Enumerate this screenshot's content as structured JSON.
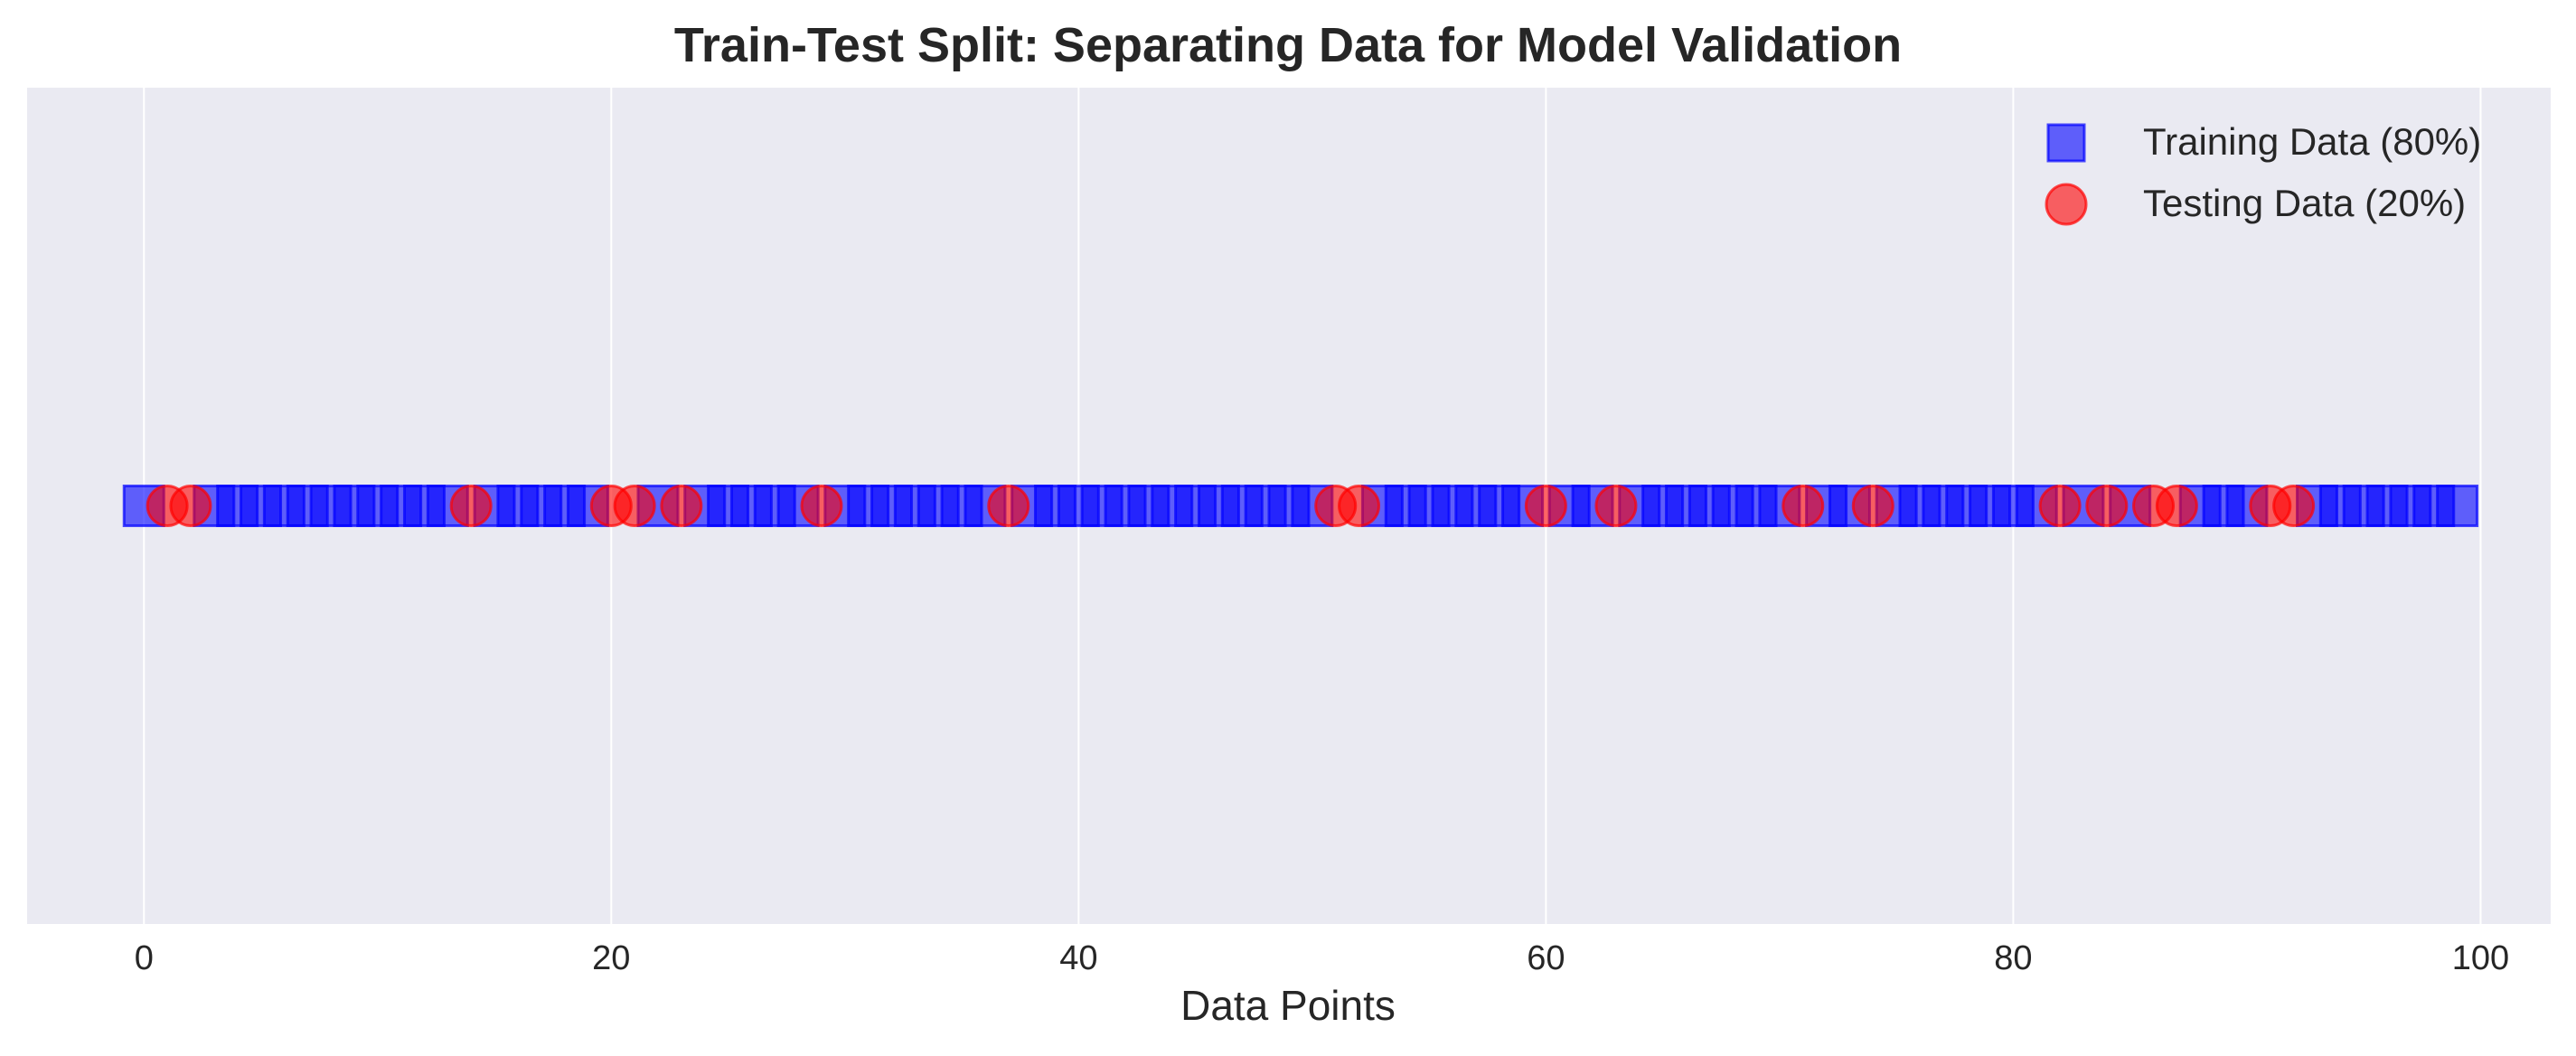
{
  "chart_data": {
    "type": "scatter",
    "title": "Train-Test Split: Separating Data for Model Validation",
    "xlabel": "Data Points",
    "ylabel": "",
    "xlim": [
      -5,
      103
    ],
    "ylim": [
      -1,
      1
    ],
    "xticks": [
      0,
      20,
      40,
      60,
      80,
      100
    ],
    "grid": true,
    "legend_position": "top-right",
    "series": [
      {
        "name": "Training Data (80%)",
        "marker": "square",
        "color": "#0000ff",
        "x": [
          0,
          3,
          4,
          5,
          6,
          7,
          8,
          9,
          10,
          11,
          12,
          13,
          15,
          16,
          17,
          18,
          19,
          22,
          24,
          25,
          26,
          27,
          28,
          30,
          31,
          32,
          33,
          34,
          35,
          36,
          38,
          39,
          40,
          41,
          42,
          43,
          44,
          45,
          46,
          47,
          48,
          49,
          50,
          53,
          54,
          55,
          56,
          57,
          58,
          59,
          61,
          62,
          64,
          65,
          66,
          67,
          68,
          69,
          70,
          72,
          73,
          75,
          76,
          77,
          78,
          79,
          80,
          81,
          83,
          85,
          88,
          89,
          90,
          93,
          94,
          95,
          96,
          97,
          98,
          99
        ],
        "y": [
          0,
          0,
          0,
          0,
          0,
          0,
          0,
          0,
          0,
          0,
          0,
          0,
          0,
          0,
          0,
          0,
          0,
          0,
          0,
          0,
          0,
          0,
          0,
          0,
          0,
          0,
          0,
          0,
          0,
          0,
          0,
          0,
          0,
          0,
          0,
          0,
          0,
          0,
          0,
          0,
          0,
          0,
          0,
          0,
          0,
          0,
          0,
          0,
          0,
          0,
          0,
          0,
          0,
          0,
          0,
          0,
          0,
          0,
          0,
          0,
          0,
          0,
          0,
          0,
          0,
          0,
          0,
          0,
          0,
          0,
          0,
          0,
          0,
          0,
          0,
          0,
          0,
          0,
          0,
          0
        ]
      },
      {
        "name": "Testing Data (20%)",
        "marker": "circle",
        "color": "#ff0000",
        "x": [
          1,
          2,
          14,
          20,
          21,
          23,
          29,
          37,
          51,
          52,
          60,
          63,
          71,
          74,
          82,
          84,
          86,
          87,
          91,
          92
        ],
        "y": [
          0,
          0,
          0,
          0,
          0,
          0,
          0,
          0,
          0,
          0,
          0,
          0,
          0,
          0,
          0,
          0,
          0,
          0,
          0,
          0
        ]
      }
    ]
  }
}
